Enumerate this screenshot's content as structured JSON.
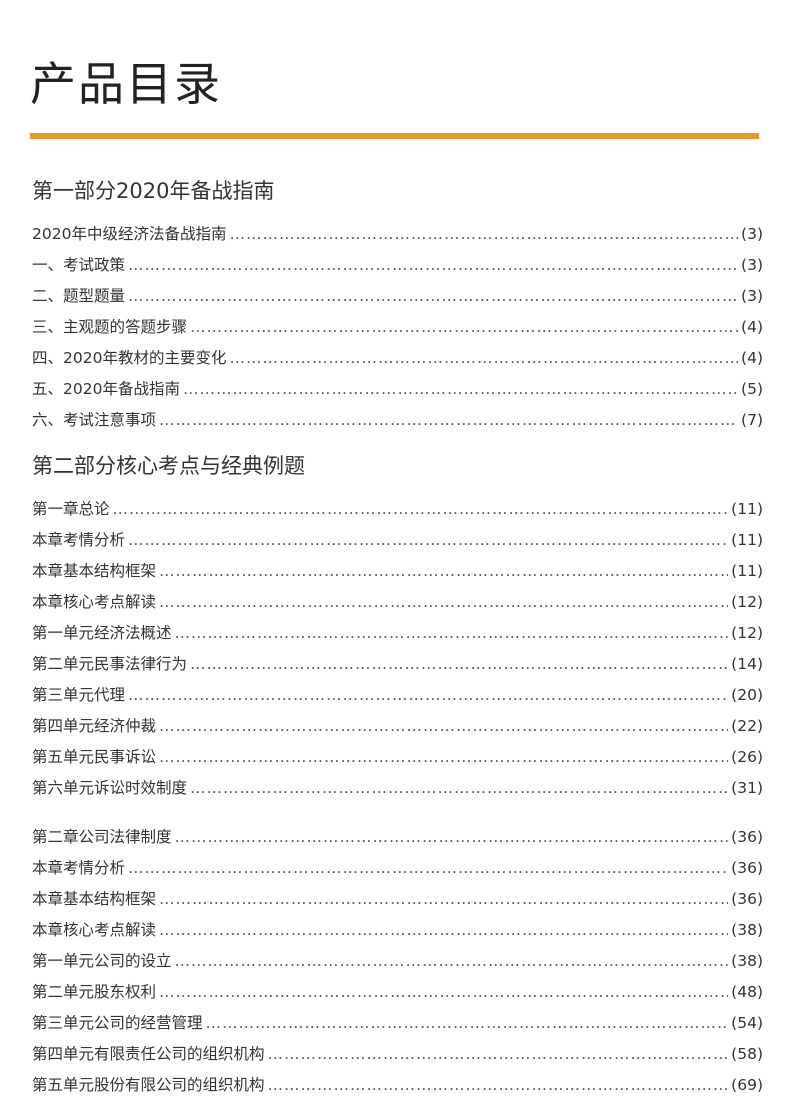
{
  "title": "产品目录",
  "accent_color": "#e99a26",
  "parts": [
    {
      "heading": "第一部分2020年备战指南",
      "items": [
        {
          "label": "2020年中级经济法备战指南",
          "page": "(3)"
        },
        {
          "label": "一、考试政策",
          "page": "(3)"
        },
        {
          "label": "二、题型题量",
          "page": "(3)"
        },
        {
          "label": "三、主观题的答题步骤",
          "page": "(4)"
        },
        {
          "label": "四、2020年教材的主要变化",
          "page": "(4)"
        },
        {
          "label": "五、2020年备战指南",
          "page": "(5)"
        },
        {
          "label": "六、考试注意事项",
          "page": "(7)"
        }
      ]
    },
    {
      "heading": "第二部分核心考点与经典例题",
      "groups": [
        [
          {
            "label": "第一章总论",
            "page": "(11)"
          },
          {
            "label": "本章考情分析",
            "page": "(11)"
          },
          {
            "label": "本章基本结构框架",
            "page": "(11)"
          },
          {
            "label": "本章核心考点解读",
            "page": "(12)"
          },
          {
            "label": "第一单元经济法概述",
            "page": "(12)"
          },
          {
            "label": "第二单元民事法律行为",
            "page": "(14)"
          },
          {
            "label": "第三单元代理",
            "page": "(20)"
          },
          {
            "label": "第四单元经济仲裁",
            "page": "(22)"
          },
          {
            "label": "第五单元民事诉讼",
            "page": "(26)"
          },
          {
            "label": "第六单元诉讼时效制度",
            "page": "(31)"
          }
        ],
        [
          {
            "label": "第二章公司法律制度",
            "page": "(36)"
          },
          {
            "label": "本章考情分析",
            "page": "(36)"
          },
          {
            "label": "本章基本结构框架",
            "page": "(36)"
          },
          {
            "label": "本章核心考点解读",
            "page": "(38)"
          },
          {
            "label": "第一单元公司的设立",
            "page": "(38)"
          },
          {
            "label": "第二单元股东权利",
            "page": "(48)"
          },
          {
            "label": "第三单元公司的经营管理",
            "page": "(54)"
          },
          {
            "label": "第四单元有限责任公司的组织机构",
            "page": "(58)"
          },
          {
            "label": "第五单元股份有限公司的组织机构",
            "page": "(69)"
          }
        ]
      ]
    }
  ]
}
